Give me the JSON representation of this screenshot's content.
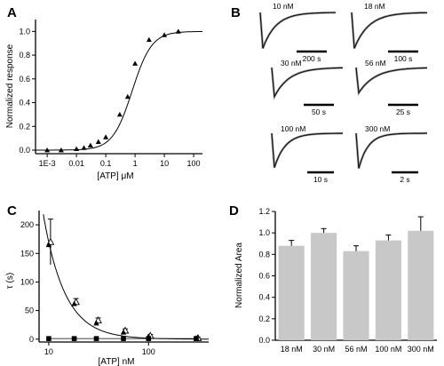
{
  "panel_letters": {
    "a": "A",
    "b": "B",
    "c": "C",
    "d": "D"
  },
  "chart_data": [
    {
      "panel": "A",
      "type": "scatter",
      "xlabel": "[ATP] μM",
      "ylabel": "Normalized response",
      "xscale": "log",
      "xlim": [
        0.0004,
        200
      ],
      "ylim": [
        -0.03,
        1.1
      ],
      "xticks": [
        0.001,
        0.01,
        0.1,
        1,
        10,
        100
      ],
      "xtick_labels": [
        "1E-3",
        "0.01",
        "0.1",
        "1",
        "10",
        "100"
      ],
      "yticks": [
        0.0,
        0.2,
        0.4,
        0.6,
        0.8,
        1.0
      ],
      "ytick_labels": [
        "0.0",
        "0.2",
        "0.4",
        "0.6",
        "0.8",
        "1.0"
      ],
      "series": [
        {
          "marker": "triangle",
          "x": [
            0.001,
            0.003,
            0.01,
            0.018,
            0.03,
            0.056,
            0.1,
            0.3,
            0.56,
            1,
            3,
            10,
            30
          ],
          "y": [
            0.0,
            0.0,
            0.01,
            0.02,
            0.04,
            0.07,
            0.11,
            0.3,
            0.45,
            0.73,
            0.93,
            0.97,
            1.0
          ]
        }
      ],
      "fit": {
        "type": "hill",
        "ec50": 0.8,
        "n": 1.3
      }
    },
    {
      "panel": "B",
      "type": "traces",
      "traces": [
        {
          "label": "10 nM",
          "scale": "200 s"
        },
        {
          "label": "18 nM",
          "scale": "100 s"
        },
        {
          "label": "30 nM",
          "scale": "50 s"
        },
        {
          "label": "56 nM",
          "scale": "25 s"
        },
        {
          "label": "100 nM",
          "scale": "10 s"
        },
        {
          "label": "300 nM",
          "scale": "2 s"
        }
      ]
    },
    {
      "panel": "C",
      "type": "scatter",
      "xlabel": "[ATP] nM",
      "ylabel": "τ (s)",
      "xscale": "log",
      "xlim": [
        8,
        400
      ],
      "ylim": [
        -5,
        225
      ],
      "xticks": [
        10,
        100
      ],
      "xtick_labels": [
        "10",
        "100"
      ],
      "yticks": [
        0,
        50,
        100,
        150,
        200
      ],
      "ytick_labels": [
        "0",
        "50",
        "100",
        "150",
        "200"
      ],
      "series": [
        {
          "marker": "open-triangle",
          "x": [
            10,
            18,
            30,
            56,
            100,
            300
          ],
          "y": [
            170,
            65,
            33,
            15,
            6,
            2
          ],
          "err": [
            40,
            6,
            4,
            3,
            2,
            1
          ]
        },
        {
          "marker": "filled-triangle",
          "x": [
            10,
            18,
            30,
            56,
            100,
            300
          ],
          "y": [
            165,
            62,
            28,
            12,
            5,
            2
          ],
          "err": [
            0,
            0,
            0,
            0,
            0,
            0
          ]
        },
        {
          "marker": "filled-square",
          "x": [
            10,
            18,
            30,
            56,
            100,
            300
          ],
          "y": [
            1,
            1,
            1,
            1,
            1,
            1
          ],
          "err": [
            0,
            0,
            0,
            0,
            0,
            0
          ]
        }
      ],
      "fit": {
        "type": "power",
        "a": 17000,
        "b": 2.0
      }
    },
    {
      "panel": "D",
      "type": "bar",
      "ylabel": "Normalized Area",
      "categories": [
        "18 nM",
        "30 nM",
        "56 nM",
        "100 nM",
        "300 nM"
      ],
      "values": [
        0.88,
        1.0,
        0.83,
        0.93,
        1.02
      ],
      "errors": [
        0.05,
        0.04,
        0.05,
        0.05,
        0.13
      ],
      "ylim": [
        0,
        1.2
      ],
      "yticks": [
        0.0,
        0.2,
        0.4,
        0.6,
        0.8,
        1.0,
        1.2
      ],
      "ytick_labels": [
        "0.0",
        "0.2",
        "0.4",
        "0.6",
        "0.8",
        "1.0",
        "1.2"
      ],
      "colors": {
        "bar": "#c8c8c8"
      }
    }
  ]
}
